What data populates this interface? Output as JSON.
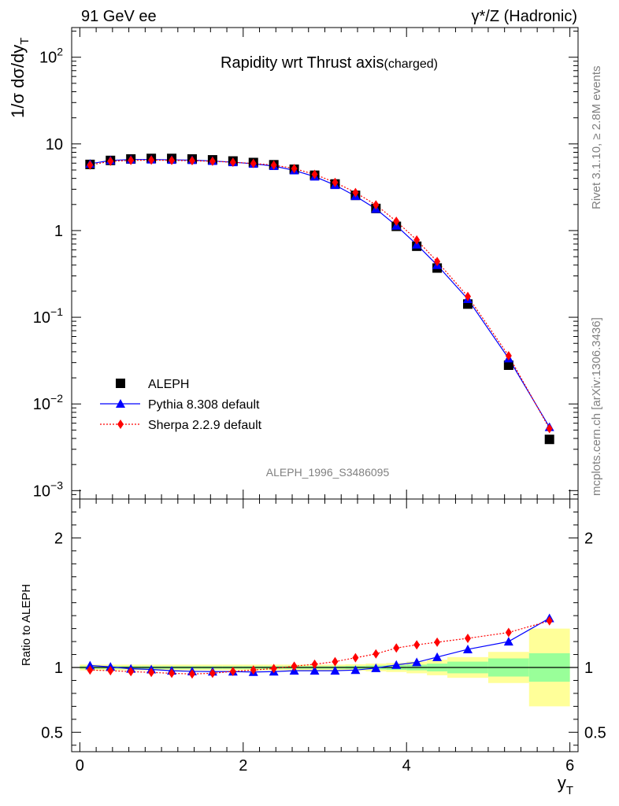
{
  "header": {
    "left": "91 GeV ee",
    "right": "γ*/Z (Hadronic)"
  },
  "side_text": {
    "rivet": "Rivet 3.1.10, ≥ 2.8M events",
    "mcplots": "mcplots.cern.ch [arXiv:1306.3436]"
  },
  "chart_data": [
    {
      "type": "scatter",
      "title": "Rapidity wrt Thrust axis",
      "title_sub": "(charged)",
      "ylabel": "1/σ dσ/dy_T",
      "yscale": "log",
      "ylim": [
        0.0008,
        220
      ],
      "xlim": [
        -0.1,
        6.1
      ],
      "ytick_labels": [
        "10^-3",
        "10^-2",
        "10^-1",
        "1",
        "10",
        "10^2"
      ],
      "watermark": "ALEPH_1996_S3486095",
      "legend": {
        "placement": "lower-left",
        "entries": [
          "ALEPH",
          "Pythia 8.308 default",
          "Sherpa 2.2.9 default"
        ]
      },
      "x": [
        0.125,
        0.375,
        0.625,
        0.875,
        1.125,
        1.375,
        1.625,
        1.875,
        2.125,
        2.375,
        2.625,
        2.875,
        3.125,
        3.375,
        3.625,
        3.875,
        4.125,
        4.375,
        4.75,
        5.25,
        5.75
      ],
      "series": [
        {
          "name": "ALEPH",
          "color": "#000000",
          "marker": "square",
          "values": [
            5.8,
            6.45,
            6.7,
            6.8,
            6.8,
            6.7,
            6.55,
            6.35,
            6.1,
            5.75,
            5.1,
            4.35,
            3.45,
            2.55,
            1.8,
            1.12,
            0.66,
            0.37,
            0.142,
            0.028,
            0.0039
          ]
        },
        {
          "name": "Pythia 8.308 default",
          "color": "#0000ff",
          "marker": "triangle",
          "line": "solid",
          "values": [
            5.9,
            6.45,
            6.6,
            6.6,
            6.55,
            6.5,
            6.35,
            6.15,
            5.9,
            5.55,
            4.95,
            4.2,
            3.35,
            2.5,
            1.78,
            1.14,
            0.69,
            0.4,
            0.162,
            0.0335,
            0.0054
          ]
        },
        {
          "name": "Sherpa 2.2.9 default",
          "color": "#ff0000",
          "marker": "diamond",
          "line": "dotted",
          "values": [
            5.7,
            6.3,
            6.45,
            6.5,
            6.45,
            6.4,
            6.3,
            6.15,
            5.95,
            5.7,
            5.2,
            4.45,
            3.6,
            2.75,
            1.98,
            1.28,
            0.78,
            0.44,
            0.174,
            0.036,
            0.0052
          ]
        }
      ]
    },
    {
      "type": "line",
      "ylabel": "Ratio to ALEPH",
      "xlabel": "y_T",
      "ylim": [
        0.35,
        2.3
      ],
      "xlim": [
        -0.1,
        6.1
      ],
      "xticks": [
        0,
        2,
        4,
        6
      ],
      "yticks": [
        0.5,
        1,
        2
      ],
      "x": [
        0.125,
        0.375,
        0.625,
        0.875,
        1.125,
        1.375,
        1.625,
        1.875,
        2.125,
        2.375,
        2.625,
        2.875,
        3.125,
        3.375,
        3.625,
        3.875,
        4.125,
        4.375,
        4.75,
        5.25,
        5.75
      ],
      "bands": {
        "edges": [
          0.0,
          0.25,
          0.5,
          0.75,
          1.0,
          1.25,
          1.5,
          1.75,
          2.0,
          2.25,
          2.5,
          2.75,
          3.0,
          3.25,
          3.5,
          3.75,
          4.0,
          4.25,
          4.5,
          5.0,
          5.5,
          6.0
        ],
        "stat": [
          0.01,
          0.01,
          0.01,
          0.01,
          0.01,
          0.01,
          0.01,
          0.01,
          0.01,
          0.01,
          0.01,
          0.01,
          0.01,
          0.012,
          0.015,
          0.018,
          0.022,
          0.03,
          0.045,
          0.07,
          0.11
        ],
        "total": [
          0.022,
          0.022,
          0.022,
          0.022,
          0.022,
          0.022,
          0.022,
          0.022,
          0.022,
          0.022,
          0.022,
          0.022,
          0.022,
          0.025,
          0.03,
          0.035,
          0.045,
          0.06,
          0.08,
          0.12,
          0.3
        ],
        "stat_color": "#99ff99",
        "total_color": "#ffff99"
      },
      "series": [
        {
          "name": "Pythia 8.308 default",
          "color": "#0000ff",
          "marker": "triangle",
          "values": [
            1.015,
            1.005,
            0.99,
            0.985,
            0.975,
            0.97,
            0.968,
            0.968,
            0.965,
            0.968,
            0.975,
            0.975,
            0.975,
            0.98,
            0.995,
            1.02,
            1.04,
            1.08,
            1.14,
            1.2,
            1.38
          ]
        },
        {
          "name": "Sherpa 2.2.9 default",
          "color": "#ff0000",
          "marker": "diamond",
          "values": [
            0.98,
            0.975,
            0.968,
            0.962,
            0.955,
            0.95,
            0.955,
            0.97,
            0.98,
            0.992,
            1.01,
            1.025,
            1.045,
            1.075,
            1.105,
            1.15,
            1.175,
            1.195,
            1.225,
            1.27,
            1.36
          ]
        }
      ]
    }
  ]
}
